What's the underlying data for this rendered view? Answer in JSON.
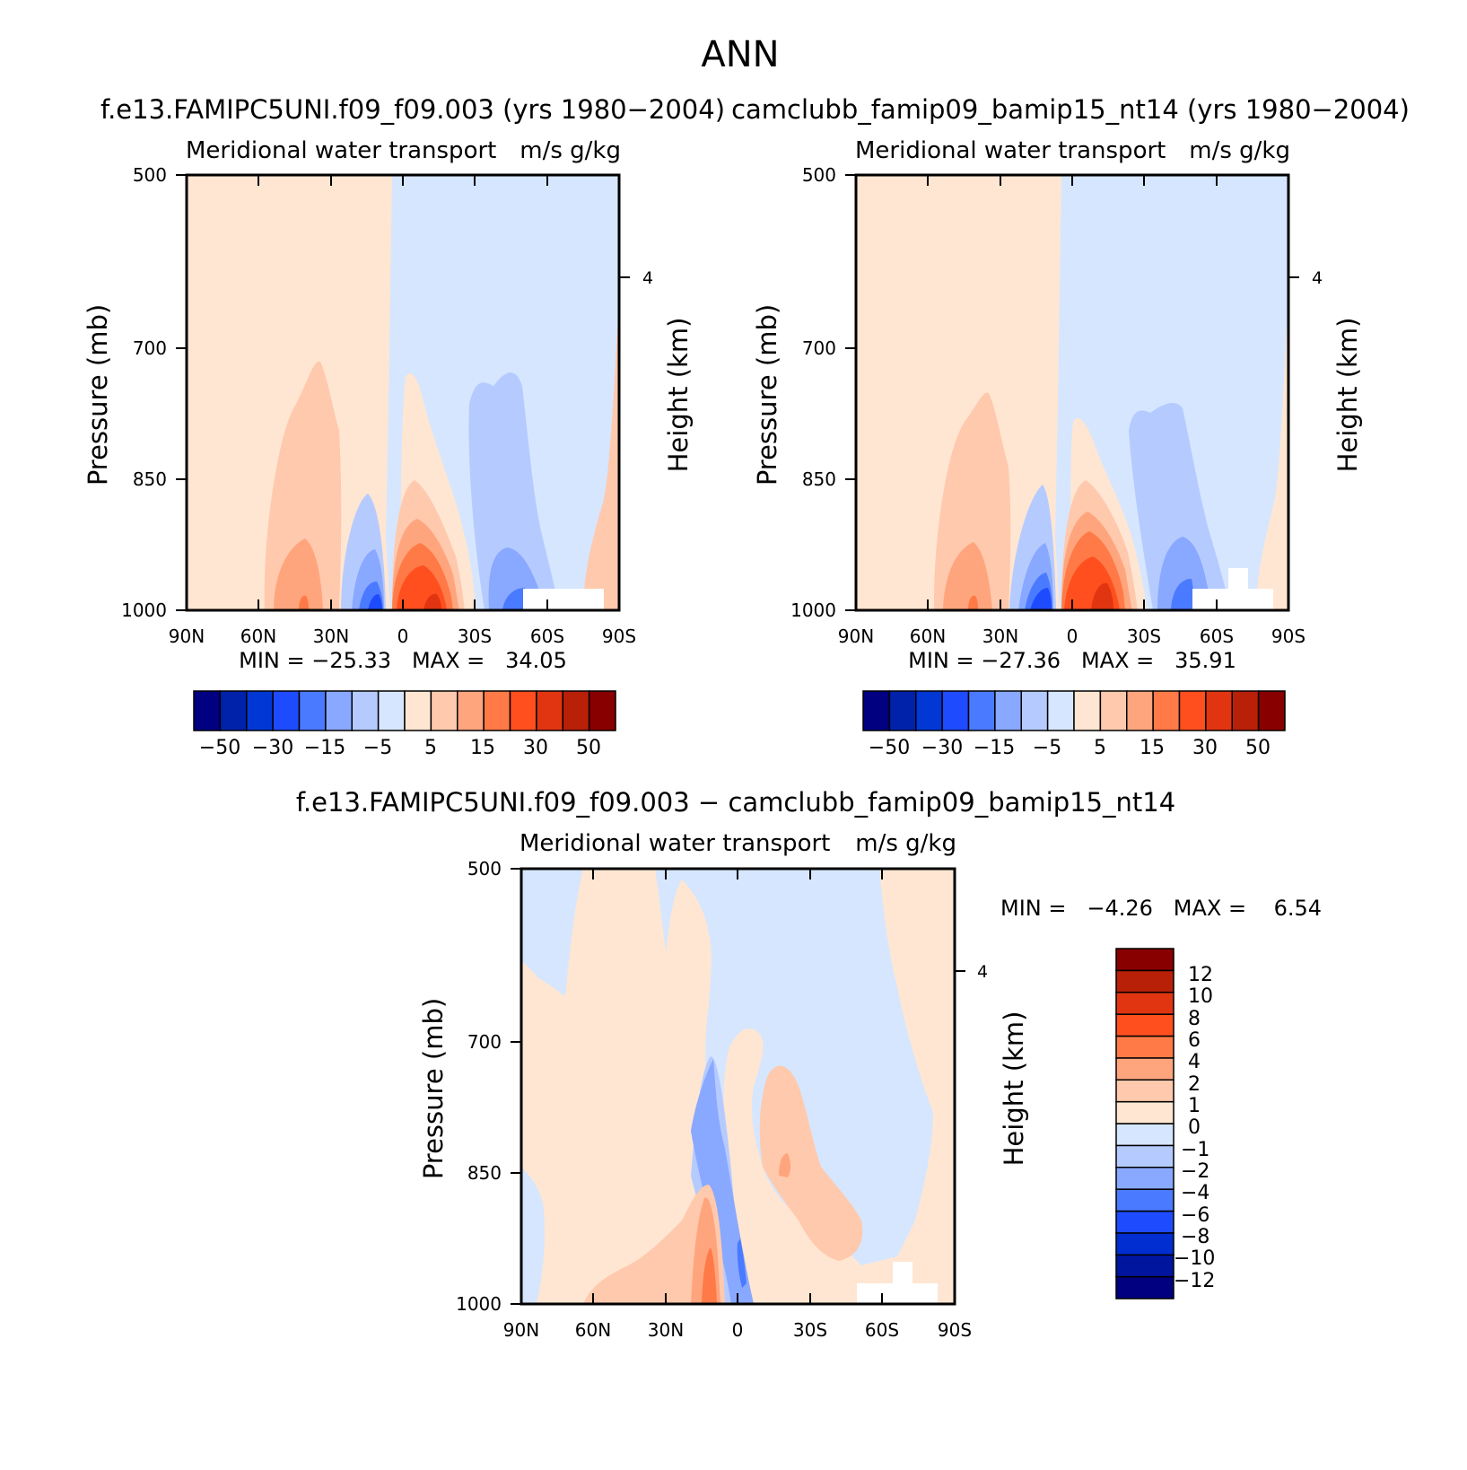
{
  "figure": {
    "title": "ANN"
  },
  "palette": {
    "abs": [
      "#000080",
      "#0022aa",
      "#0037d5",
      "#1f4bff",
      "#4a7aff",
      "#89a8ff",
      "#b5cbff",
      "#d6e6ff",
      "#ffe6d2",
      "#ffc9ad",
      "#ffa57d",
      "#ff7a47",
      "#ff4f1f",
      "#e03510",
      "#b82008",
      "#880000"
    ],
    "diff": [
      "#000080",
      "#00159e",
      "#002ed0",
      "#1f4bff",
      "#4a7aff",
      "#89a8ff",
      "#b5cbff",
      "#d6e6ff",
      "#ffe6d2",
      "#ffc9ad",
      "#ffa57d",
      "#ff7a47",
      "#ff4f1f",
      "#e03510",
      "#b82008",
      "#880000"
    ]
  },
  "chart_data": [
    {
      "type": "heatmap",
      "title": "f.e13.FAMIPC5UNI.f09_f09.003 (yrs 1980−2004)",
      "subtitle_left": "Meridional water transport",
      "subtitle_right": "m/s g/kg",
      "ylabel": "Pressure (mb)",
      "ylabel_right": "Height (km)",
      "xticks": [
        "90N",
        "60N",
        "30N",
        "0",
        "30S",
        "60S",
        "90S"
      ],
      "yticks": [
        "500",
        "700",
        "850",
        "1000"
      ],
      "ytick_values": [
        500,
        700,
        850,
        1000
      ],
      "right_ticks": [
        "4"
      ],
      "xlim": [
        90,
        -90
      ],
      "ylim": [
        1000,
        500
      ],
      "stats": "MIN = −25.33   MAX =   34.05",
      "min": -25.33,
      "max": 34.05,
      "levels": [
        -60,
        -50,
        -40,
        -30,
        -20,
        -15,
        -10,
        -5,
        0,
        5,
        10,
        15,
        20,
        30,
        40,
        50
      ],
      "colorbar_labels": [
        "−50",
        "−30",
        "−15",
        "−5",
        "5",
        "15",
        "30",
        "50"
      ]
    },
    {
      "type": "heatmap",
      "title": "camclubb_famip09_bamip15_nt14 (yrs 1980−2004)",
      "subtitle_left": "Meridional water transport",
      "subtitle_right": "m/s g/kg",
      "ylabel": "Pressure (mb)",
      "ylabel_right": "Height (km)",
      "xticks": [
        "90N",
        "60N",
        "30N",
        "0",
        "30S",
        "60S",
        "90S"
      ],
      "yticks": [
        "500",
        "700",
        "850",
        "1000"
      ],
      "ytick_values": [
        500,
        700,
        850,
        1000
      ],
      "right_ticks": [
        "4"
      ],
      "xlim": [
        90,
        -90
      ],
      "ylim": [
        1000,
        500
      ],
      "stats": "MIN = −27.36   MAX =   35.91",
      "min": -27.36,
      "max": 35.91,
      "levels": [
        -60,
        -50,
        -40,
        -30,
        -20,
        -15,
        -10,
        -5,
        0,
        5,
        10,
        15,
        20,
        30,
        40,
        50
      ],
      "colorbar_labels": [
        "−50",
        "−30",
        "−15",
        "−5",
        "5",
        "15",
        "30",
        "50"
      ]
    },
    {
      "type": "heatmap",
      "title": "f.e13.FAMIPC5UNI.f09_f09.003 − camclubb_famip09_bamip15_nt14",
      "subtitle_left": "Meridional water transport",
      "subtitle_right": "m/s g/kg",
      "ylabel": "Pressure (mb)",
      "ylabel_right": "Height (km)",
      "xticks": [
        "90N",
        "60N",
        "30N",
        "0",
        "30S",
        "60S",
        "90S"
      ],
      "yticks": [
        "500",
        "700",
        "850",
        "1000"
      ],
      "ytick_values": [
        500,
        700,
        850,
        1000
      ],
      "right_ticks": [
        "4"
      ],
      "xlim": [
        90,
        -90
      ],
      "ylim": [
        1000,
        500
      ],
      "stats": "MIN =   −4.26   MAX =    6.54",
      "min": -4.26,
      "max": 6.54,
      "levels": [
        -14,
        -12,
        -10,
        -8,
        -6,
        -4,
        -2,
        -1,
        0,
        1,
        2,
        4,
        6,
        8,
        10,
        12
      ],
      "colorbar_labels": [
        "12",
        "10",
        "8",
        "6",
        "4",
        "2",
        "1",
        "0",
        "−1",
        "−2",
        "−4",
        "−6",
        "−8",
        "−10",
        "−12"
      ]
    }
  ]
}
